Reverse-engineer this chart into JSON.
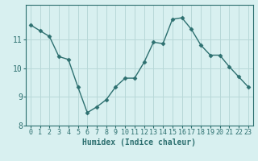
{
  "x": [
    0,
    1,
    2,
    3,
    4,
    5,
    6,
    7,
    8,
    9,
    10,
    11,
    12,
    13,
    14,
    15,
    16,
    17,
    18,
    19,
    20,
    21,
    22,
    23
  ],
  "y": [
    11.5,
    11.3,
    11.1,
    10.4,
    10.3,
    9.35,
    8.45,
    8.65,
    8.9,
    9.35,
    9.65,
    9.65,
    10.2,
    10.9,
    10.85,
    11.7,
    11.75,
    11.35,
    10.8,
    10.45,
    10.45,
    10.05,
    9.7,
    9.35
  ],
  "line_color": "#2d7070",
  "marker": "D",
  "marker_size": 2.5,
  "bg_color": "#d8f0f0",
  "grid_color": "#b8d8d8",
  "xlabel": "Humidex (Indice chaleur)",
  "xlim": [
    -0.5,
    23.5
  ],
  "ylim": [
    8.0,
    12.2
  ],
  "yticks": [
    8,
    9,
    10,
    11
  ],
  "xticks": [
    0,
    1,
    2,
    3,
    4,
    5,
    6,
    7,
    8,
    9,
    10,
    11,
    12,
    13,
    14,
    15,
    16,
    17,
    18,
    19,
    20,
    21,
    22,
    23
  ],
  "tick_color": "#2d7070",
  "label_color": "#2d7070",
  "spine_color": "#2d7070",
  "font_size_xlabel": 7,
  "font_size_ticks": 6,
  "linewidth": 1.0
}
